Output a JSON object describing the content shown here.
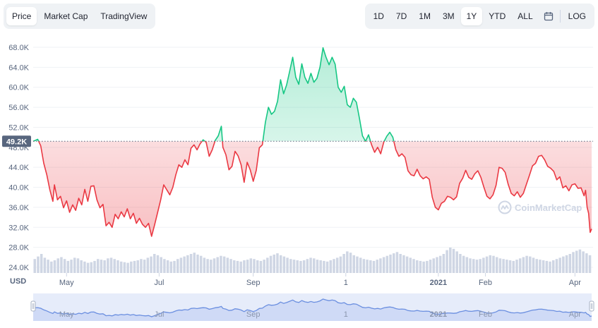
{
  "tabs": [
    {
      "label": "Price",
      "active": true
    },
    {
      "label": "Market Cap",
      "active": false
    },
    {
      "label": "TradingView",
      "active": false
    }
  ],
  "ranges": [
    {
      "label": "1D",
      "active": false
    },
    {
      "label": "7D",
      "active": false
    },
    {
      "label": "1M",
      "active": false
    },
    {
      "label": "3M",
      "active": false
    },
    {
      "label": "1Y",
      "active": true
    },
    {
      "label": "YTD",
      "active": false
    },
    {
      "label": "ALL",
      "active": false
    }
  ],
  "log_label": "LOG",
  "watermark": "CoinMarketCap",
  "colors": {
    "up": "#16c784",
    "down": "#ea3943",
    "navigator": "#6b8fe0",
    "accent": "#58667e"
  },
  "chart_data": {
    "type": "line",
    "unit": "USD",
    "reference_price": 49200,
    "reference_label": "49.2K",
    "ylim": [
      24000,
      70000
    ],
    "y_ticks": [
      "24.0K",
      "28.0K",
      "32.0K",
      "36.0K",
      "40.0K",
      "44.0K",
      "48.0K",
      "52.0K",
      "56.0K",
      "60.0K",
      "64.0K",
      "68.0K"
    ],
    "y_tick_values": [
      24000,
      28000,
      32000,
      36000,
      40000,
      44000,
      48000,
      52000,
      56000,
      60000,
      64000,
      68000
    ],
    "xlim": [
      "2021-04-09",
      "2022-04-12"
    ],
    "x_ticks": [
      {
        "label": "May",
        "date": "2021-05-01",
        "bold": false
      },
      {
        "label": "Jul",
        "date": "2021-07-01",
        "bold": false
      },
      {
        "label": "Sep",
        "date": "2021-09-01",
        "bold": false
      },
      {
        "label": "1",
        "date": "2021-11-01",
        "bold": false
      },
      {
        "label": "2021",
        "date": "2022-01-01",
        "bold": true
      },
      {
        "label": "Feb",
        "date": "2022-02-01",
        "bold": false
      },
      {
        "label": "Apr",
        "date": "2022-04-01",
        "bold": false
      }
    ],
    "navigator_ticks": [
      "May",
      "Jul",
      "Sep",
      "1",
      "2021",
      "Feb",
      "Apr"
    ],
    "series": [
      {
        "values": [
          [
            "2021-04-09",
            49200
          ],
          [
            "2021-04-12",
            49600
          ],
          [
            "2021-04-14",
            48300
          ],
          [
            "2021-04-16",
            44800
          ],
          [
            "2021-04-18",
            42500
          ],
          [
            "2021-04-20",
            39500
          ],
          [
            "2021-04-22",
            37200
          ],
          [
            "2021-04-23",
            40500
          ],
          [
            "2021-04-25",
            37500
          ],
          [
            "2021-04-27",
            38200
          ],
          [
            "2021-04-29",
            35900
          ],
          [
            "2021-05-01",
            37300
          ],
          [
            "2021-05-03",
            35000
          ],
          [
            "2021-05-05",
            36500
          ],
          [
            "2021-05-07",
            35400
          ],
          [
            "2021-05-09",
            37800
          ],
          [
            "2021-05-11",
            36500
          ],
          [
            "2021-05-13",
            39600
          ],
          [
            "2021-05-15",
            37200
          ],
          [
            "2021-05-17",
            40200
          ],
          [
            "2021-05-19",
            40300
          ],
          [
            "2021-05-21",
            37500
          ],
          [
            "2021-05-23",
            35900
          ],
          [
            "2021-05-25",
            36600
          ],
          [
            "2021-05-27",
            32300
          ],
          [
            "2021-05-29",
            33000
          ],
          [
            "2021-05-31",
            32000
          ],
          [
            "2021-06-02",
            34600
          ],
          [
            "2021-06-04",
            33700
          ],
          [
            "2021-06-06",
            35100
          ],
          [
            "2021-06-08",
            34100
          ],
          [
            "2021-06-10",
            35700
          ],
          [
            "2021-06-12",
            33700
          ],
          [
            "2021-06-14",
            34800
          ],
          [
            "2021-06-16",
            32800
          ],
          [
            "2021-06-18",
            33800
          ],
          [
            "2021-06-20",
            32600
          ],
          [
            "2021-06-22",
            32000
          ],
          [
            "2021-06-24",
            32800
          ],
          [
            "2021-06-26",
            30200
          ],
          [
            "2021-06-28",
            32500
          ],
          [
            "2021-06-30",
            35000
          ],
          [
            "2021-07-02",
            37500
          ],
          [
            "2021-07-04",
            40500
          ],
          [
            "2021-07-06",
            39500
          ],
          [
            "2021-07-08",
            38500
          ],
          [
            "2021-07-10",
            40000
          ],
          [
            "2021-07-12",
            42500
          ],
          [
            "2021-07-14",
            44500
          ],
          [
            "2021-07-16",
            44000
          ],
          [
            "2021-07-18",
            45500
          ],
          [
            "2021-07-20",
            44500
          ],
          [
            "2021-07-22",
            47800
          ],
          [
            "2021-07-24",
            48500
          ],
          [
            "2021-07-26",
            47500
          ],
          [
            "2021-07-28",
            48700
          ],
          [
            "2021-07-30",
            49500
          ],
          [
            "2021-08-01",
            49000
          ],
          [
            "2021-08-03",
            46200
          ],
          [
            "2021-08-05",
            47500
          ],
          [
            "2021-08-07",
            49400
          ],
          [
            "2021-08-09",
            50300
          ],
          [
            "2021-08-11",
            52200
          ],
          [
            "2021-08-12",
            48000
          ],
          [
            "2021-08-14",
            46500
          ],
          [
            "2021-08-16",
            43500
          ],
          [
            "2021-08-18",
            44200
          ],
          [
            "2021-08-20",
            47200
          ],
          [
            "2021-08-22",
            46300
          ],
          [
            "2021-08-24",
            44500
          ],
          [
            "2021-08-26",
            41000
          ],
          [
            "2021-08-28",
            45000
          ],
          [
            "2021-08-30",
            43500
          ],
          [
            "2021-09-01",
            41200
          ],
          [
            "2021-09-03",
            43400
          ],
          [
            "2021-09-05",
            47900
          ],
          [
            "2021-09-07",
            48500
          ],
          [
            "2021-09-09",
            53000
          ],
          [
            "2021-09-11",
            56000
          ],
          [
            "2021-09-13",
            54600
          ],
          [
            "2021-09-15",
            55200
          ],
          [
            "2021-09-17",
            57200
          ],
          [
            "2021-09-19",
            61500
          ],
          [
            "2021-09-21",
            58700
          ],
          [
            "2021-09-23",
            60500
          ],
          [
            "2021-09-25",
            63200
          ],
          [
            "2021-09-27",
            66000
          ],
          [
            "2021-09-29",
            62000
          ],
          [
            "2021-10-01",
            60600
          ],
          [
            "2021-10-03",
            64700
          ],
          [
            "2021-10-05",
            62000
          ],
          [
            "2021-10-07",
            60800
          ],
          [
            "2021-10-09",
            62800
          ],
          [
            "2021-10-11",
            61000
          ],
          [
            "2021-10-13",
            61800
          ],
          [
            "2021-10-15",
            64000
          ],
          [
            "2021-10-17",
            67900
          ],
          [
            "2021-10-19",
            66000
          ],
          [
            "2021-10-21",
            64500
          ],
          [
            "2021-10-23",
            66000
          ],
          [
            "2021-10-25",
            64600
          ],
          [
            "2021-10-27",
            60000
          ],
          [
            "2021-10-29",
            59000
          ],
          [
            "2021-10-31",
            60200
          ],
          [
            "2021-11-02",
            56500
          ],
          [
            "2021-11-04",
            56000
          ],
          [
            "2021-11-06",
            57800
          ],
          [
            "2021-11-08",
            57000
          ],
          [
            "2021-11-10",
            53800
          ],
          [
            "2021-11-12",
            50300
          ],
          [
            "2021-11-14",
            49200
          ],
          [
            "2021-11-16",
            50500
          ],
          [
            "2021-11-18",
            48500
          ],
          [
            "2021-11-20",
            47000
          ],
          [
            "2021-11-22",
            48000
          ],
          [
            "2021-11-24",
            46700
          ],
          [
            "2021-11-26",
            49000
          ],
          [
            "2021-11-28",
            50200
          ],
          [
            "2021-11-30",
            51000
          ],
          [
            "2021-12-02",
            50000
          ],
          [
            "2021-12-04",
            47500
          ],
          [
            "2021-12-06",
            46200
          ],
          [
            "2021-12-08",
            46700
          ],
          [
            "2021-12-10",
            46000
          ],
          [
            "2021-12-12",
            43300
          ],
          [
            "2021-12-14",
            42500
          ],
          [
            "2021-12-16",
            42300
          ],
          [
            "2021-12-18",
            43600
          ],
          [
            "2021-12-20",
            42300
          ],
          [
            "2021-12-22",
            41700
          ],
          [
            "2021-12-24",
            42100
          ],
          [
            "2021-12-26",
            41600
          ],
          [
            "2021-12-28",
            38000
          ],
          [
            "2021-12-30",
            36000
          ],
          [
            "2022-01-01",
            35500
          ],
          [
            "2022-01-03",
            36800
          ],
          [
            "2022-01-05",
            37200
          ],
          [
            "2022-01-07",
            38200
          ],
          [
            "2022-01-09",
            38000
          ],
          [
            "2022-01-11",
            37500
          ],
          [
            "2022-01-13",
            38100
          ],
          [
            "2022-01-15",
            40800
          ],
          [
            "2022-01-17",
            41800
          ],
          [
            "2022-01-19",
            43400
          ],
          [
            "2022-01-21",
            42000
          ],
          [
            "2022-01-23",
            41600
          ],
          [
            "2022-01-25",
            42700
          ],
          [
            "2022-01-27",
            43300
          ],
          [
            "2022-01-29",
            42000
          ],
          [
            "2022-01-31",
            40000
          ],
          [
            "2022-02-02",
            38200
          ],
          [
            "2022-02-04",
            37700
          ],
          [
            "2022-02-06",
            38500
          ],
          [
            "2022-02-08",
            40400
          ],
          [
            "2022-02-10",
            44000
          ],
          [
            "2022-02-12",
            43800
          ],
          [
            "2022-02-14",
            43000
          ],
          [
            "2022-02-16",
            40600
          ],
          [
            "2022-02-18",
            38800
          ],
          [
            "2022-02-20",
            38300
          ],
          [
            "2022-02-22",
            39100
          ],
          [
            "2022-02-24",
            38000
          ],
          [
            "2022-02-26",
            38800
          ],
          [
            "2022-02-28",
            40600
          ],
          [
            "2022-03-02",
            42400
          ],
          [
            "2022-03-04",
            44300
          ],
          [
            "2022-03-06",
            44800
          ],
          [
            "2022-03-08",
            46200
          ],
          [
            "2022-03-10",
            46400
          ],
          [
            "2022-03-12",
            45500
          ],
          [
            "2022-03-14",
            44200
          ],
          [
            "2022-03-16",
            43800
          ],
          [
            "2022-03-18",
            43200
          ],
          [
            "2022-03-20",
            41500
          ],
          [
            "2022-03-22",
            42100
          ],
          [
            "2022-03-24",
            39900
          ],
          [
            "2022-03-26",
            40300
          ],
          [
            "2022-03-28",
            39300
          ],
          [
            "2022-03-30",
            40500
          ],
          [
            "2022-04-01",
            40700
          ],
          [
            "2022-04-03",
            39800
          ],
          [
            "2022-04-05",
            39900
          ],
          [
            "2022-04-07",
            38300
          ],
          [
            "2022-04-08",
            39400
          ],
          [
            "2022-04-09",
            36000
          ],
          [
            "2022-04-10",
            34800
          ],
          [
            "2022-04-11",
            31000
          ],
          [
            "2022-04-12",
            31700
          ]
        ]
      }
    ],
    "volume": [
      22,
      26,
      30,
      24,
      21,
      18,
      20,
      23,
      25,
      22,
      19,
      21,
      24,
      23,
      20,
      18,
      16,
      17,
      19,
      22,
      21,
      20,
      23,
      24,
      22,
      20,
      18,
      17,
      16,
      18,
      19,
      20,
      22,
      21,
      24,
      26,
      30,
      28,
      25,
      22,
      20,
      18,
      19,
      22,
      24,
      26,
      28,
      30,
      32,
      29,
      27,
      24,
      22,
      21,
      23,
      25,
      27,
      26,
      24,
      22,
      20,
      19,
      18,
      20,
      21,
      23,
      22,
      20,
      19,
      21,
      24,
      27,
      29,
      31,
      28,
      26,
      24,
      22,
      21,
      20,
      19,
      20,
      22,
      24,
      23,
      21,
      20,
      19,
      18,
      20,
      22,
      24,
      26,
      30,
      34,
      32,
      28,
      26,
      24,
      22,
      21,
      20,
      19,
      21,
      23,
      25,
      27,
      29,
      31,
      33,
      30,
      28,
      26,
      24,
      22,
      20,
      19,
      18,
      19,
      21,
      23,
      25,
      27,
      30,
      36,
      40,
      38,
      34,
      30,
      27,
      25,
      23,
      22,
      21,
      22,
      24,
      26,
      28,
      27,
      25,
      23,
      22,
      21,
      20,
      19,
      21,
      23,
      25,
      27,
      26,
      24,
      22,
      21,
      20,
      19,
      18,
      20,
      22,
      24,
      26,
      28,
      30,
      33,
      35,
      37,
      34,
      31,
      28
    ]
  }
}
